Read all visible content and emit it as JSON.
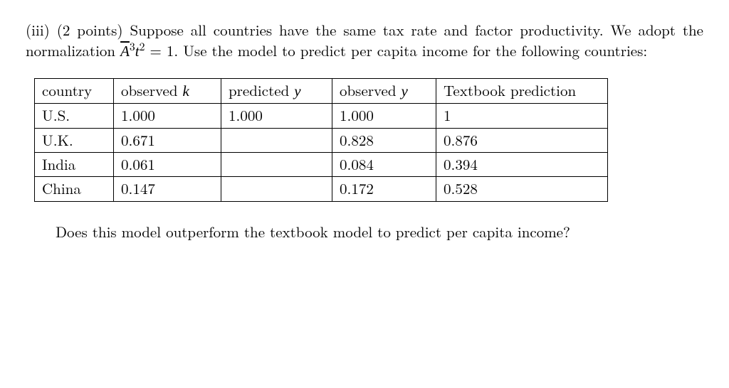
{
  "problem": {
    "label_iii": "(iii)",
    "points": "(2 points)",
    "text_part1": "Suppose all countries have the same tax rate and factor productivity. We adopt the normalization",
    "norm_expr_html": "<span class=\"overline math-italic\">A</span><sup>3</sup><span class=\"math-italic\">t</span><sup>2</sup> = 1.",
    "text_part2": "Use the model to predict per capita income for the following countries:"
  },
  "table": {
    "headers": {
      "country": "country",
      "observed_k": "observed",
      "observed_k_var": "k",
      "predicted_y": "predicted",
      "predicted_y_var": "y",
      "observed_y": "observed",
      "observed_y_var": "y",
      "textbook": "Textbook prediction"
    },
    "rows": [
      {
        "country": "U.S.",
        "obsk": "1.000",
        "predy": "1.000",
        "obsy": "1.000",
        "textbook": "1"
      },
      {
        "country": "U.K.",
        "obsk": "0.671",
        "predy": "",
        "obsy": "0.828",
        "textbook": "0.876"
      },
      {
        "country": "India",
        "obsk": "0.061",
        "predy": "",
        "obsy": "0.084",
        "textbook": "0.394"
      },
      {
        "country": "China",
        "obsk": "0.147",
        "predy": "",
        "obsy": "0.172",
        "textbook": "0.528"
      }
    ]
  },
  "footer": {
    "question": "Does this model outperform the textbook model to predict per capita income?"
  }
}
